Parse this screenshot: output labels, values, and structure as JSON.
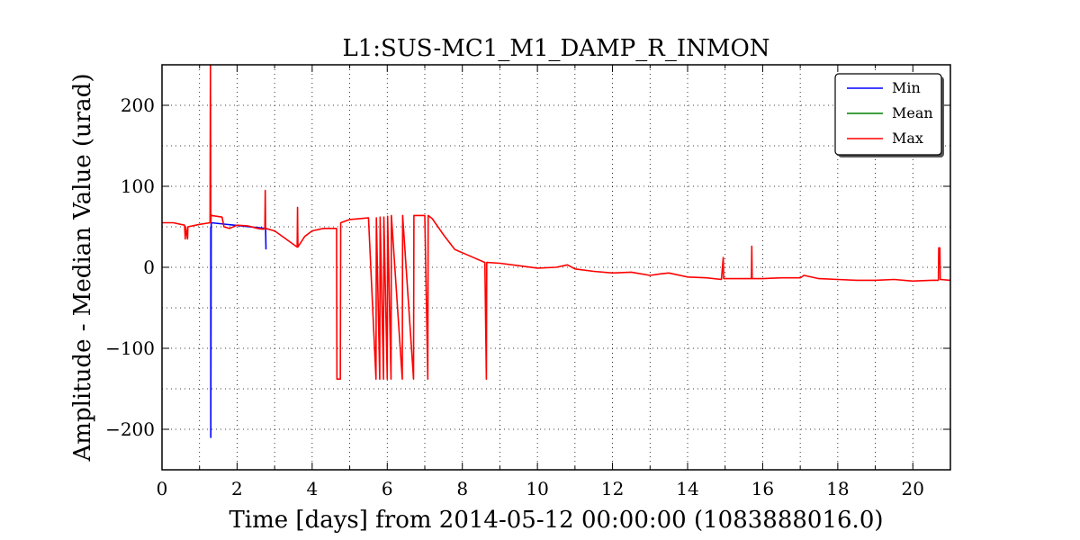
{
  "chart_data": {
    "type": "line",
    "title": "L1:SUS-MC1_M1_DAMP_R_INMON",
    "xlabel": "Time [days] from 2014-05-12 00:00:00 (1083888016.0)",
    "ylabel": "Amplitude - Median Value (urad)",
    "xlim": [
      0,
      21
    ],
    "ylim": [
      -250,
      250
    ],
    "xticks": [
      0,
      2,
      4,
      6,
      8,
      10,
      12,
      14,
      16,
      18,
      20
    ],
    "yticks": [
      -200,
      -100,
      0,
      100,
      200
    ],
    "ytick_labels": [
      "−200",
      "−100",
      "0",
      "100",
      "200"
    ],
    "grid": true,
    "legend_position": "top-right",
    "series": [
      {
        "name": "Min",
        "color": "#0000ff",
        "x": [
          1.3,
          1.3,
          1.31,
          2.76,
          2.77
        ],
        "y": [
          50,
          -210,
          55,
          48,
          22
        ]
      },
      {
        "name": "Mean",
        "color": "#008000",
        "x": [
          0,
          21
        ],
        "y": [
          55,
          -16
        ]
      },
      {
        "name": "Max",
        "color": "#ff0000",
        "x": [
          0.0,
          0.3,
          0.6,
          0.62,
          0.63,
          0.68,
          0.69,
          1.0,
          1.28,
          1.29,
          1.3,
          1.31,
          1.32,
          1.6,
          1.65,
          1.8,
          2.0,
          2.3,
          2.55,
          2.7,
          2.74,
          2.75,
          2.76,
          3.0,
          3.3,
          3.6,
          3.61,
          3.62,
          3.8,
          4.0,
          4.3,
          4.6,
          4.65,
          4.66,
          4.75,
          4.76,
          5.0,
          5.5,
          5.7,
          5.71,
          5.8,
          5.81,
          5.9,
          5.91,
          6.0,
          6.01,
          6.1,
          6.11,
          6.4,
          6.41,
          6.7,
          6.71,
          7.0,
          7.08,
          7.09,
          7.2,
          7.5,
          7.8,
          8.0,
          8.3,
          8.6,
          8.64,
          8.65,
          8.66,
          9.0,
          9.5,
          10.0,
          10.5,
          10.8,
          11.0,
          11.5,
          12.0,
          12.5,
          13.0,
          13.3,
          13.5,
          14.0,
          14.5,
          14.9,
          14.95,
          14.96,
          15.3,
          15.7,
          15.71,
          15.72,
          16.0,
          16.5,
          17.0,
          17.1,
          17.5,
          18.0,
          18.5,
          19.0,
          19.5,
          20.0,
          20.5,
          20.68,
          20.69,
          20.72,
          20.73,
          21.0
        ],
        "y": [
          55,
          55,
          52,
          35,
          50,
          35,
          50,
          53,
          55,
          250,
          55,
          65,
          64,
          62,
          50,
          48,
          52,
          51,
          48,
          47,
          48,
          95,
          48,
          45,
          35,
          25,
          74,
          25,
          38,
          45,
          48,
          48,
          48,
          -138,
          -138,
          55,
          59,
          61,
          -138,
          61,
          -138,
          62,
          -138,
          62,
          -138,
          63,
          -138,
          64,
          -138,
          64,
          -138,
          64,
          64,
          -138,
          64,
          60,
          40,
          22,
          18,
          12,
          6,
          -138,
          6,
          6,
          5,
          2,
          -1,
          0,
          3,
          -2,
          -5,
          -7,
          -6,
          -10,
          -8,
          -7,
          -12,
          -13,
          -15,
          12,
          -14,
          -14,
          -14,
          26,
          -14,
          -14,
          -13,
          -13,
          -10,
          -14,
          -15,
          -16,
          -16,
          -15,
          -17,
          -16,
          -16,
          24,
          24,
          -15,
          -16
        ]
      }
    ]
  }
}
